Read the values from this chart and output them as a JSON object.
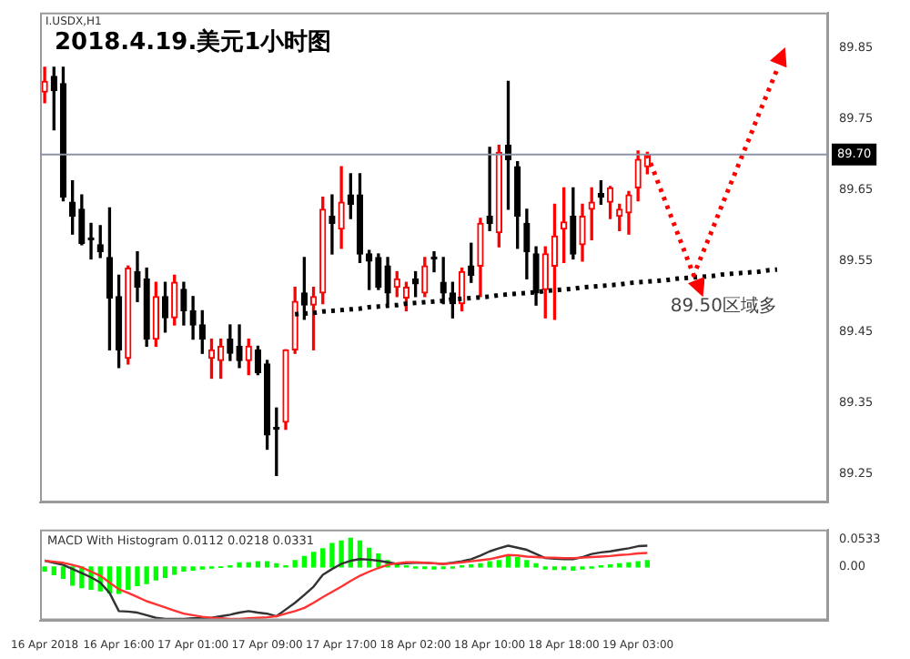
{
  "chart_data": [
    {
      "type": "candlestick",
      "title": "2018.4.19.美元1小时图",
      "subtitle": "I.USDX,H1",
      "categories": [
        null,
        null,
        null,
        null,
        null,
        null,
        null,
        null,
        null,
        null,
        null,
        null,
        null,
        null,
        null,
        null,
        null,
        null,
        null,
        null,
        null,
        null,
        null,
        null,
        null,
        null,
        null,
        null,
        null,
        null,
        null,
        null,
        null,
        null,
        null,
        null,
        null,
        null,
        null,
        null,
        null,
        null,
        null,
        null,
        null,
        null,
        null,
        null,
        null,
        null,
        null,
        null,
        null,
        null,
        null,
        null,
        null,
        null,
        null,
        null,
        null,
        null,
        null,
        null,
        null,
        null,
        null,
        null,
        null,
        null,
        null,
        null,
        null,
        null,
        null,
        null,
        null,
        null,
        null,
        null,
        null,
        null,
        null,
        null,
        null
      ],
      "ohlc": [
        [
          89.788,
          89.823,
          89.773,
          89.803
        ],
        [
          89.81,
          89.823,
          89.735,
          89.79
        ],
        [
          89.8,
          89.823,
          89.635,
          89.64
        ],
        [
          89.633,
          89.663,
          89.588,
          89.613
        ],
        [
          89.623,
          89.643,
          89.573,
          89.575
        ],
        [
          89.58,
          89.603,
          89.553,
          89.58
        ],
        [
          89.573,
          89.6,
          89.555,
          89.563
        ],
        [
          89.555,
          89.625,
          89.425,
          89.498
        ],
        [
          89.5,
          89.53,
          89.4,
          89.425
        ],
        [
          89.413,
          89.543,
          89.405,
          89.54
        ],
        [
          89.535,
          89.563,
          89.493,
          89.513
        ],
        [
          89.525,
          89.54,
          89.43,
          89.44
        ],
        [
          89.44,
          89.52,
          89.43,
          89.5
        ],
        [
          89.5,
          89.52,
          89.45,
          89.47
        ],
        [
          89.47,
          89.53,
          89.46,
          89.52
        ],
        [
          89.51,
          89.52,
          89.46,
          89.48
        ],
        [
          89.48,
          89.5,
          89.44,
          89.46
        ],
        [
          89.46,
          89.48,
          89.42,
          89.44
        ],
        [
          89.413,
          89.44,
          89.385,
          89.425
        ],
        [
          89.41,
          89.44,
          89.385,
          89.43
        ],
        [
          89.44,
          89.46,
          89.41,
          89.42
        ],
        [
          89.43,
          89.46,
          89.4,
          89.41
        ],
        [
          89.41,
          89.44,
          89.39,
          89.43
        ],
        [
          89.425,
          89.43,
          89.39,
          89.393
        ],
        [
          89.405,
          89.41,
          89.285,
          89.305
        ],
        [
          89.315,
          89.343,
          89.248,
          89.313
        ],
        [
          89.323,
          89.425,
          89.313,
          89.425
        ],
        [
          89.425,
          89.513,
          89.42,
          89.493
        ],
        [
          89.505,
          89.555,
          89.468,
          89.488
        ],
        [
          89.488,
          89.513,
          89.425,
          89.5
        ],
        [
          89.505,
          89.64,
          89.49,
          89.623
        ],
        [
          89.613,
          89.643,
          89.56,
          89.603
        ],
        [
          89.595,
          89.683,
          89.568,
          89.633
        ],
        [
          89.643,
          89.673,
          89.61,
          89.63
        ],
        [
          89.643,
          89.673,
          89.548,
          89.56
        ],
        [
          89.56,
          89.565,
          89.51,
          89.55
        ],
        [
          89.555,
          89.56,
          89.51,
          89.513
        ],
        [
          89.543,
          89.555,
          89.49,
          89.505
        ],
        [
          89.513,
          89.535,
          89.5,
          89.525
        ],
        [
          89.498,
          89.52,
          89.48,
          89.513
        ],
        [
          89.525,
          89.535,
          89.5,
          89.518
        ],
        [
          89.505,
          89.555,
          89.5,
          89.543
        ],
        [
          89.555,
          89.563,
          89.535,
          89.553
        ],
        [
          89.52,
          89.555,
          89.49,
          89.505
        ],
        [
          89.505,
          89.52,
          89.47,
          89.49
        ],
        [
          89.49,
          89.54,
          89.48,
          89.535
        ],
        [
          89.543,
          89.575,
          89.52,
          89.53
        ],
        [
          89.543,
          89.61,
          89.5,
          89.603
        ],
        [
          89.613,
          89.71,
          89.593,
          89.603
        ],
        [
          89.59,
          89.713,
          89.57,
          89.703
        ],
        [
          89.713,
          89.803,
          89.623,
          89.693
        ],
        [
          89.683,
          89.69,
          89.568,
          89.613
        ],
        [
          89.603,
          89.623,
          89.525,
          89.563
        ],
        [
          89.56,
          89.57,
          89.488,
          89.505
        ],
        [
          89.51,
          89.57,
          89.47,
          89.56
        ],
        [
          89.543,
          89.63,
          89.468,
          89.585
        ],
        [
          89.595,
          89.653,
          89.548,
          89.605
        ],
        [
          89.613,
          89.653,
          89.553,
          89.56
        ],
        [
          89.573,
          89.63,
          89.55,
          89.613
        ],
        [
          89.623,
          89.653,
          89.58,
          89.633
        ],
        [
          89.645,
          89.663,
          89.63,
          89.64
        ],
        [
          89.633,
          89.655,
          89.61,
          89.653
        ],
        [
          89.613,
          89.63,
          89.593,
          89.623
        ],
        [
          89.618,
          89.648,
          89.588,
          89.643
        ],
        [
          89.653,
          89.705,
          89.635,
          89.693
        ],
        [
          89.683,
          89.703,
          89.673,
          89.7
        ],
        null,
        null,
        null,
        null,
        null,
        null,
        null,
        null,
        null,
        null,
        null,
        null,
        null,
        null,
        null,
        null,
        null,
        null,
        null
      ],
      "colors": [
        "#ff0000",
        "#000000",
        "#000000",
        "#000000",
        "#000000",
        "#000000",
        "#000000",
        "#000000",
        "#000000",
        "#ff0000",
        "#000000",
        "#000000",
        "#ff0000",
        "#000000",
        "#ff0000",
        "#000000",
        "#000000",
        "#000000",
        "#ff0000",
        "#ff0000",
        "#000000",
        "#000000",
        "#ff0000",
        "#000000",
        "#000000",
        "#000000",
        "#ff0000",
        "#ff0000",
        "#000000",
        "#ff0000",
        "#ff0000",
        "#000000",
        "#ff0000",
        "#000000",
        "#000000",
        "#000000",
        "#000000",
        "#000000",
        "#ff0000",
        "#ff0000",
        "#000000",
        "#ff0000",
        "#000000",
        "#000000",
        "#000000",
        "#ff0000",
        "#000000",
        "#ff0000",
        "#000000",
        "#ff0000",
        "#000000",
        "#000000",
        "#000000",
        "#000000",
        "#ff0000",
        "#ff0000",
        "#ff0000",
        "#000000",
        "#ff0000",
        "#ff0000",
        "#000000",
        "#ff0000",
        "#ff0000",
        "#ff0000",
        "#ff0000",
        "#ff0000",
        null,
        null,
        null,
        null,
        null,
        null,
        null,
        null,
        null,
        null,
        null,
        null,
        null,
        null,
        null,
        null,
        null,
        null,
        null
      ],
      "series": [
        {
          "type": "line",
          "color": "#000000",
          "line_style": "dotted",
          "values": [
            null,
            null,
            null,
            null,
            null,
            null,
            null,
            null,
            null,
            null,
            null,
            null,
            null,
            null,
            null,
            null,
            null,
            null,
            null,
            null,
            null,
            null,
            null,
            null,
            null,
            null,
            null,
            89.475,
            89.476,
            89.477,
            89.479,
            89.48,
            89.481,
            89.482,
            89.483,
            89.485,
            89.486,
            89.487,
            89.488,
            89.49,
            89.491,
            89.492,
            89.493,
            89.494,
            89.496,
            89.497,
            89.498,
            89.499,
            89.5,
            89.502,
            89.503,
            89.504,
            89.505,
            89.506,
            89.508,
            89.509,
            89.51,
            89.511,
            89.513,
            89.514,
            89.515,
            89.516,
            89.517,
            89.519,
            89.52,
            89.521,
            89.522,
            89.523,
            89.525,
            89.526,
            89.527,
            89.528,
            89.529,
            89.531,
            89.532,
            89.533,
            89.534,
            89.535,
            89.537,
            89.538,
            null,
            null,
            null,
            null,
            null
          ]
        },
        {
          "type": "line",
          "color": "#ff0000",
          "line_style": "dotted",
          "values": [
            null,
            null,
            null,
            null,
            null,
            null,
            null,
            null,
            null,
            null,
            null,
            null,
            null,
            null,
            null,
            null,
            null,
            null,
            null,
            null,
            null,
            null,
            null,
            null,
            null,
            null,
            null,
            null,
            null,
            null,
            null,
            null,
            null,
            null,
            null,
            null,
            null,
            null,
            null,
            null,
            null,
            null,
            null,
            null,
            null,
            null,
            null,
            null,
            null,
            null,
            null,
            null,
            null,
            null,
            null,
            null,
            null,
            null,
            null,
            null,
            null,
            null,
            null,
            null,
            null,
            89.7,
            89.666,
            89.632,
            89.598,
            89.564,
            89.53,
            89.562,
            89.594,
            89.627,
            89.659,
            89.691,
            89.723,
            89.756,
            89.788,
            89.82,
            null,
            null,
            null,
            null,
            null
          ]
        }
      ],
      "ylim": [
        89.21,
        89.9
      ],
      "yticks": [
        89.25,
        89.35,
        89.45,
        89.55,
        89.65,
        89.75,
        89.85
      ],
      "ref_lines": [
        {
          "axis": "y",
          "value": 89.7,
          "label": "89.70",
          "color": "#8a94a6"
        }
      ],
      "annotations": [
        "89.50区域多"
      ],
      "tick_labels": "y",
      "grid": false,
      "legend": false,
      "marker": "none"
    },
    {
      "type": "bar",
      "title": "MACD With Histogram 0.0112 0.0218 0.0331",
      "categories": [
        "16 Apr 2018",
        null,
        null,
        null,
        null,
        null,
        null,
        null,
        "16 Apr 16:00",
        null,
        null,
        null,
        null,
        null,
        null,
        null,
        "17 Apr 01:00",
        null,
        null,
        null,
        null,
        null,
        null,
        null,
        "17 Apr 09:00",
        null,
        null,
        null,
        null,
        null,
        null,
        null,
        "17 Apr 17:00",
        null,
        null,
        null,
        null,
        null,
        null,
        null,
        "18 Apr 02:00",
        null,
        null,
        null,
        null,
        null,
        null,
        null,
        "18 Apr 10:00",
        null,
        null,
        null,
        null,
        null,
        null,
        null,
        "18 Apr 18:00",
        null,
        null,
        null,
        null,
        null,
        null,
        null,
        "19 Apr 03:00",
        null,
        null,
        null,
        null,
        null,
        null,
        null,
        null,
        null,
        null,
        null,
        null,
        null,
        null,
        null,
        null,
        null,
        null,
        null,
        null
      ],
      "series": [
        {
          "type": "bar",
          "color": "#00ff00",
          "values": [
            -0.008,
            -0.015,
            -0.022,
            -0.035,
            -0.04,
            -0.043,
            -0.046,
            -0.05,
            -0.051,
            -0.043,
            -0.036,
            -0.032,
            -0.025,
            -0.02,
            -0.014,
            -0.008,
            -0.006,
            -0.004,
            -0.002,
            -0.001,
            0.002,
            0.008,
            0.008,
            0.01,
            0.01,
            0.006,
            0.002,
            0.012,
            0.02,
            0.028,
            0.035,
            0.045,
            0.05,
            0.055,
            0.05,
            0.036,
            0.025,
            0.012,
            0.004,
            0.002,
            -0.002,
            -0.003,
            -0.004,
            -0.003,
            -0.002,
            0.002,
            0.004,
            0.006,
            0.01,
            0.012,
            0.02,
            0.018,
            0.012,
            0.006,
            -0.004,
            -0.005,
            -0.005,
            -0.006,
            -0.004,
            -0.002,
            0.002,
            0.004,
            0.006,
            0.008,
            0.01,
            0.012,
            null,
            null,
            null,
            null,
            null,
            null,
            null,
            null,
            null,
            null,
            null,
            null,
            null,
            null,
            null,
            null,
            null,
            null,
            null
          ]
        },
        {
          "type": "line",
          "color": "#333333",
          "values": [
            0.012,
            0.008,
            0.004,
            -0.004,
            -0.012,
            -0.02,
            -0.03,
            -0.05,
            -0.085,
            -0.086,
            -0.088,
            -0.093,
            -0.098,
            -0.1,
            -0.1,
            -0.1,
            -0.099,
            -0.099,
            -0.098,
            -0.095,
            -0.092,
            -0.088,
            -0.085,
            -0.088,
            -0.09,
            -0.095,
            -0.082,
            -0.069,
            -0.054,
            -0.038,
            -0.015,
            -0.004,
            0.006,
            0.012,
            0.015,
            0.014,
            0.012,
            0.009,
            0.006,
            0.007,
            0.008,
            0.008,
            0.007,
            0.006,
            0.008,
            0.011,
            0.015,
            0.022,
            0.03,
            0.036,
            0.041,
            0.037,
            0.033,
            0.025,
            0.017,
            0.016,
            0.015,
            0.015,
            0.019,
            0.025,
            0.028,
            0.03,
            0.033,
            0.036,
            0.04,
            0.041,
            null,
            null,
            null,
            null,
            null,
            null,
            null,
            null,
            null,
            null,
            null,
            null,
            null,
            null,
            null,
            null,
            null,
            null,
            null
          ]
        },
        {
          "type": "line",
          "color": "#ff3333",
          "values": [
            0.012,
            0.01,
            0.008,
            0.004,
            -0.001,
            -0.009,
            -0.017,
            -0.03,
            -0.043,
            -0.05,
            -0.058,
            -0.066,
            -0.072,
            -0.078,
            -0.084,
            -0.09,
            -0.093,
            -0.096,
            -0.098,
            -0.099,
            -0.1,
            -0.1,
            -0.099,
            -0.098,
            -0.097,
            -0.095,
            -0.09,
            -0.085,
            -0.079,
            -0.069,
            -0.058,
            -0.048,
            -0.038,
            -0.027,
            -0.017,
            -0.009,
            -0.002,
            0.004,
            0.007,
            0.009,
            0.009,
            0.008,
            0.007,
            0.006,
            0.007,
            0.009,
            0.011,
            0.013,
            0.015,
            0.019,
            0.023,
            0.022,
            0.02,
            0.019,
            0.018,
            0.018,
            0.017,
            0.017,
            0.018,
            0.019,
            0.02,
            0.021,
            0.023,
            0.024,
            0.026,
            0.027,
            null,
            null,
            null,
            null,
            null,
            null,
            null,
            null,
            null,
            null,
            null,
            null,
            null,
            null,
            null,
            null,
            null,
            null,
            null
          ]
        }
      ],
      "ylim": [
        -0.103,
        0.072
      ],
      "yticks": [
        0.0533,
        {
          "value": 0,
          "label": "0.00"
        }
      ],
      "grid": false,
      "legend": false,
      "marker": "none"
    }
  ]
}
